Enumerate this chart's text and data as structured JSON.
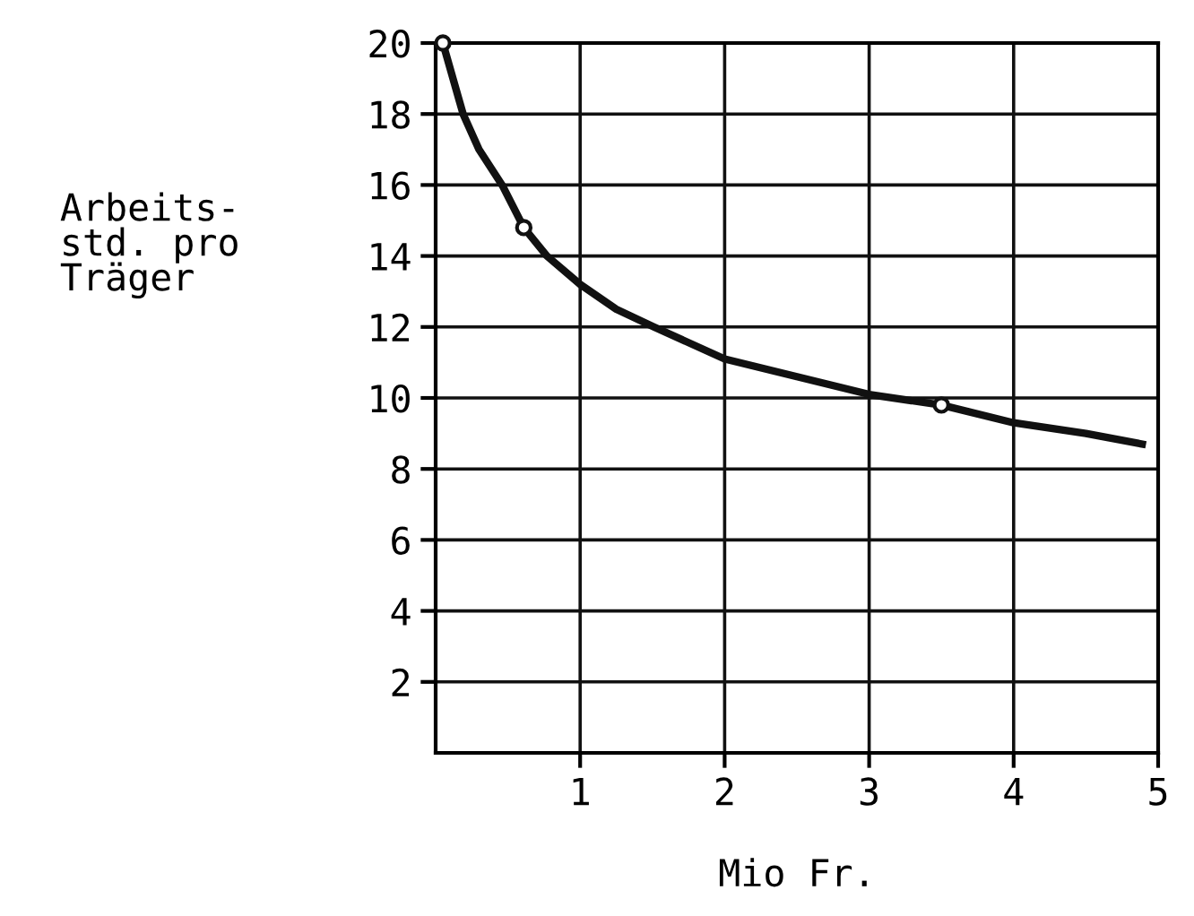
{
  "chart_data": {
    "type": "line",
    "xlabel": "Mio Fr.",
    "ylabel": "Arbeits-\nstd. pro\nTräger",
    "series": [
      {
        "color": "#111111",
        "marker": "none",
        "x": [
          0.05,
          0.19,
          0.3,
          0.46,
          0.61,
          0.77,
          1.0,
          1.25,
          1.51,
          2.0,
          2.5,
          3.0,
          3.5,
          4.0,
          4.5,
          4.89
        ],
        "values": [
          20,
          18,
          17,
          16,
          14.8,
          14,
          13.2,
          12.5,
          12,
          11.1,
          10.6,
          10.1,
          9.8,
          9.3,
          9.0,
          8.7
        ]
      },
      {
        "type": "scatter",
        "color": "#111111",
        "marker": "circle",
        "x": [
          0.05,
          0.61,
          3.5
        ],
        "values": [
          20,
          14.8,
          9.8
        ]
      }
    ],
    "xlim": [
      0,
      5
    ],
    "ylim": [
      0,
      20
    ],
    "xticks": [
      1,
      2,
      3,
      4,
      5
    ],
    "yticks": [
      2,
      4,
      6,
      8,
      10,
      12,
      14,
      16,
      18,
      20
    ],
    "grid": true
  }
}
